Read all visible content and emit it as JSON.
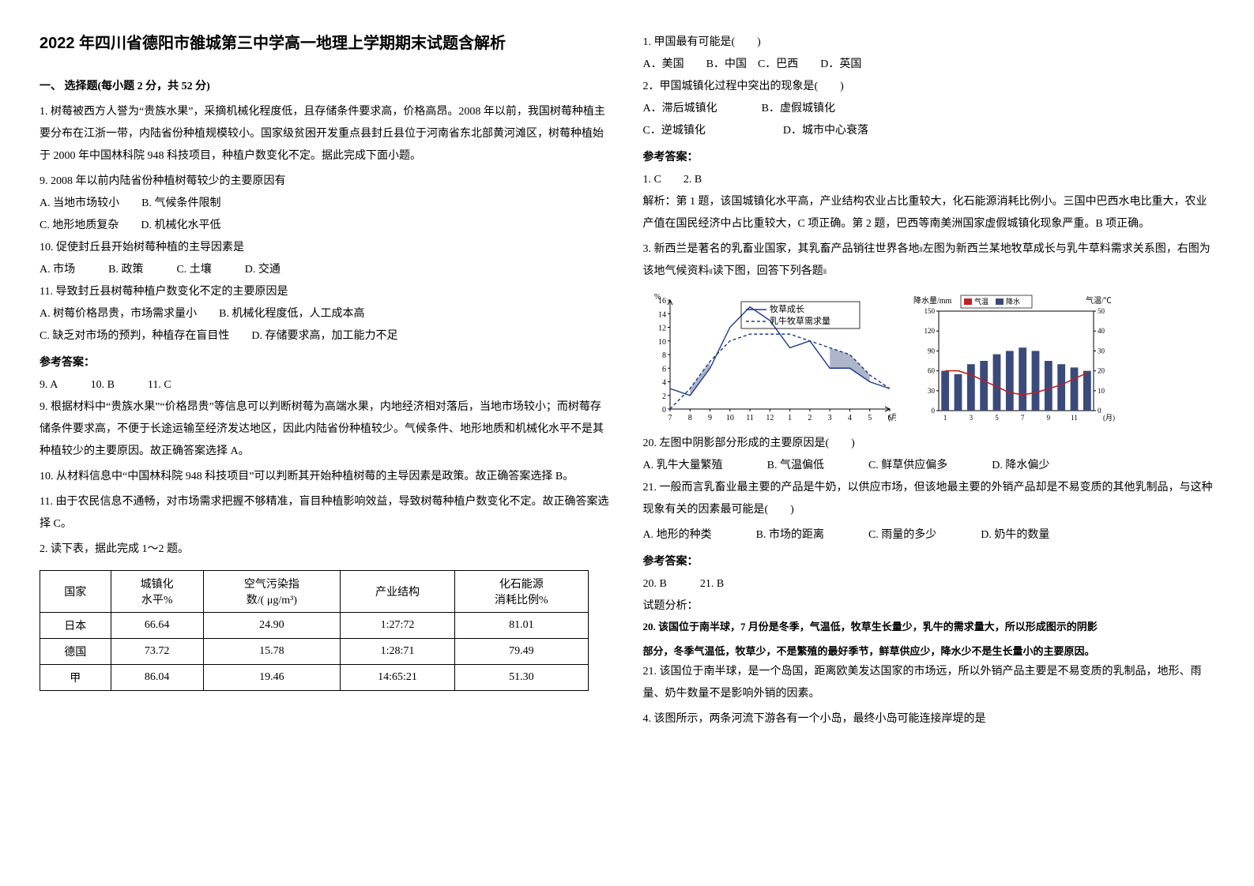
{
  "title": "2022 年四川省德阳市雒城第三中学高一地理上学期期末试题含解析",
  "section1_head": "一、 选择题(每小题 2 分，共 52 分)",
  "q1": {
    "intro": "1. 树莓被西方人誉为“贵族水果”，采摘机械化程度低，且存储条件要求高，价格高昂。2008 年以前，我国树莓种植主要分布在江浙一带，内陆省份种植规模较小。国家级贫困开发重点县封丘县位于河南省东北部黄河滩区，树莓种植始于 2000 年中国林科院 948 科技项目，种植户数变化不定。据此完成下面小题。",
    "q9": "9. 2008 年以前内陆省份种植树莓较少的主要原因有",
    "q9_opts": "A. 当地市场较小　　B. 气候条件限制",
    "q9_opts2": "C. 地形地质复杂　　D. 机械化水平低",
    "q10": "10. 促使封丘县开始树莓种植的主导因素是",
    "q10_opts": "A. 市场　　　B. 政策　　　C. 土壤　　　D. 交通",
    "q11": "11. 导致封丘县树莓种植户数变化不定的主要原因是",
    "q11_opts": "A. 树莓价格昂贵，市场需求量小　　B. 机械化程度低，人工成本高",
    "q11_opts2": "C. 缺乏对市场的预判，种植存在盲目性　　D. 存储要求高，加工能力不足",
    "ans_head": "参考答案：",
    "ans": "9. A　　　10. B　　　11. C",
    "exp9": "9. 根据材料中“贵族水果”“价格昂贵”等信息可以判断树莓为高端水果，内地经济相对落后，当地市场较小；而树莓存储条件要求高，不便于长途运输至经济发达地区，因此内陆省份种植较少。气候条件、地形地质和机械化水平不是其种植较少的主要原因。故正确答案选择 A。",
    "exp10": "10. 从材料信息中“中国林科院 948 科技项目”可以判断其开始种植树莓的主导因素是政策。故正确答案选择 B。",
    "exp11": "11. 由于农民信息不通畅，对市场需求把握不够精准，盲目种植影响效益，导致树莓种植户数变化不定。故正确答案选择 C。"
  },
  "q2": {
    "intro": "2. 读下表，据此完成 1～2 题。",
    "table": {
      "cols": [
        "国家",
        "城镇化\n水平%",
        "空气污染指\n数/( μg/m³)",
        "产业结构",
        "化石能源\n消耗比例%"
      ],
      "rows": [
        [
          "日本",
          "66.64",
          "24.90",
          "1:27:72",
          "81.01"
        ],
        [
          "德国",
          "73.72",
          "15.78",
          "1:28:71",
          "79.49"
        ],
        [
          "甲",
          "86.04",
          "19.46",
          "14:65:21",
          "51.30"
        ]
      ]
    },
    "sub1": "1. 甲国最有可能是(　　)",
    "sub1_opts": "A．美国　　B．中国　C．巴西　　D．英国",
    "sub2": "2．甲国城镇化过程中突出的现象是(　　)",
    "sub2_opts1": "A．滞后城镇化　　　　B．虚假城镇化",
    "sub2_opts2": "C．逆城镇化　　　　　　　D．城市中心衰落",
    "ans_head": "参考答案：",
    "ans": "1. C　　2. B",
    "exp": "解析：第 1 题，该国城镇化水平高，产业结构农业占比重较大，化石能源消耗比例小。三国中巴西水电比重大，农业产值在国民经济中占比重较大，C 项正确。第 2 题，巴西等南美洲国家虚假城镇化现象严重。B 项正确。"
  },
  "q3": {
    "intro": "3. 新西兰是著名的乳畜业国家，其乳畜产品销往世界各地။左图为新西兰某地牧草成长与乳牛草料需求关系图，右图为该地气候资料။读下图，回答下列各题။",
    "chart_left": {
      "type": "line",
      "x_label": "(月)",
      "y_label": "%",
      "y_ticks": [
        0,
        2,
        4,
        6,
        8,
        10,
        12,
        14,
        16
      ],
      "x_ticks": [
        7,
        8,
        9,
        10,
        11,
        12,
        1,
        2,
        3,
        4,
        5,
        6
      ],
      "series": [
        {
          "name": "牧草成长",
          "color": "#1a3a8a",
          "dash": "0",
          "values": [
            3,
            2,
            6,
            12,
            15,
            13,
            9,
            10,
            6,
            6,
            4,
            3
          ]
        },
        {
          "name": "乳牛牧草需求量",
          "color": "#1a3a8a",
          "dash": "4,3",
          "values": [
            0,
            3,
            7,
            10,
            11,
            11,
            11,
            10,
            9,
            8,
            5,
            3
          ]
        }
      ],
      "shade_color": "#6b7aa0"
    },
    "chart_right": {
      "type": "climate",
      "bar_color": "#3a4a7a",
      "line_color": "#c02020",
      "y1_label": "降水量/mm",
      "y1_max": 150,
      "y1_ticks": [
        0,
        30,
        60,
        90,
        120,
        150
      ],
      "y2_label": "气温/℃",
      "y2_max": 50,
      "y2_ticks": [
        0,
        10,
        20,
        30,
        40,
        50
      ],
      "x_ticks": [
        1,
        3,
        5,
        7,
        9,
        11
      ],
      "legend": [
        "气温",
        "降水"
      ],
      "precip": [
        60,
        55,
        70,
        75,
        85,
        90,
        95,
        90,
        75,
        70,
        65,
        60
      ],
      "temp": [
        20,
        20,
        18,
        15,
        12,
        9,
        8,
        9,
        11,
        13,
        16,
        19
      ]
    },
    "q20": "20. 左图中阴影部分形成的主要原因是(　　)",
    "q20_opts": "A. 乳牛大量繁殖　　　　B. 气温偏低　　　　C. 鲜草供应偏多　　　　D. 降水偏少",
    "q21": "21. 一般而言乳畜业最主要的产品是牛奶，以供应市场，但该地最主要的外销产品却是不易变质的其他乳制品，与这种现象有关的因素最可能是(　　)",
    "q21_opts": "A. 地形的种类　　　　B. 市场的距离　　　　C. 雨量的多少　　　　D. 奶牛的数量",
    "ans_head": "参考答案：",
    "ans": "20. B　　　21. B",
    "exp_head": "试题分析：",
    "exp20": "20. 该国位于南半球，7 月份是冬季，气温低，牧草生长量少，乳牛的需求量大，所以形成图示的阴影",
    "exp20b": "部分，冬季气温低，牧草少，不是繁殖的最好季节，鲜草供应少，降水少不是生长量小的主要原因。",
    "exp21": "21. 该国位于南半球，是一个岛国，距离欧美发达国家的市场远，所以外销产品主要是不易变质的乳制品，地形、雨量、奶牛数量不是影响外销的因素。"
  },
  "q4": "4. 该图所示，两条河流下游各有一个小岛，最终小岛可能连接岸堤的是"
}
